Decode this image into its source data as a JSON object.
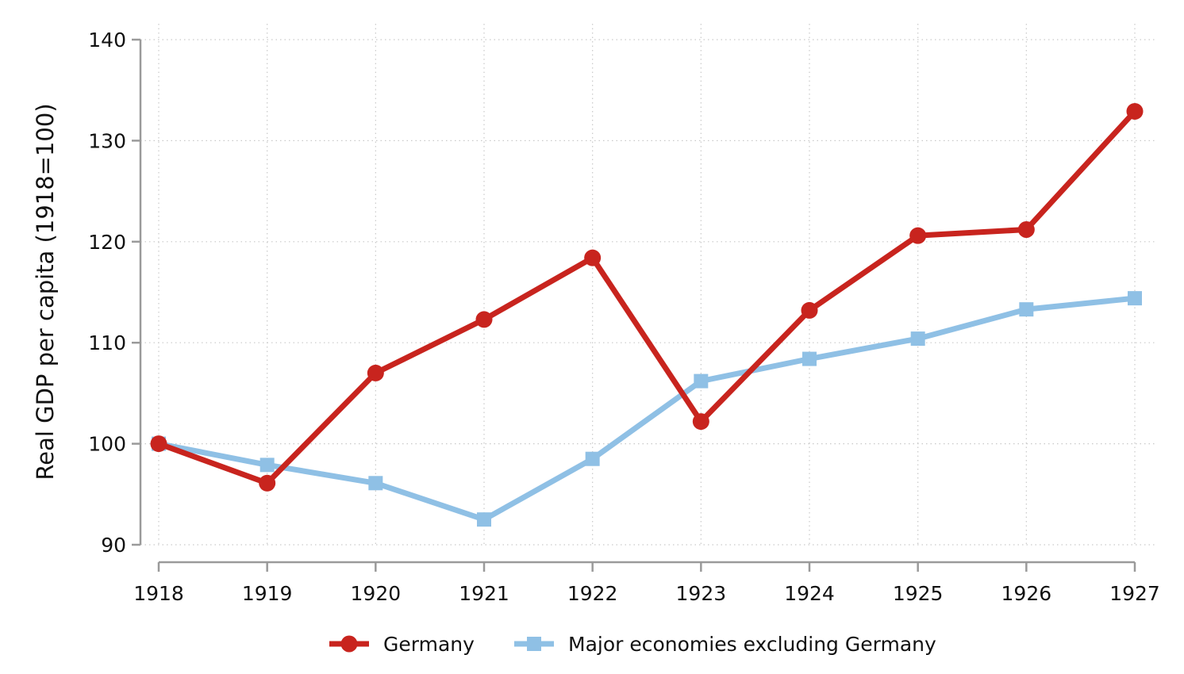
{
  "chart_data": {
    "type": "line",
    "title": "",
    "xlabel": "",
    "ylabel": "Real GDP per capita (1918=100)",
    "x": [
      1918,
      1919,
      1920,
      1921,
      1922,
      1923,
      1924,
      1925,
      1926,
      1927
    ],
    "x_tick_labels": [
      "1918",
      "1919",
      "1920",
      "1921",
      "1922",
      "1923",
      "1924",
      "1925",
      "1926",
      "1927"
    ],
    "ylim": [
      90,
      140
    ],
    "y_ticks": [
      90,
      100,
      110,
      120,
      130,
      140
    ],
    "grid": true,
    "legend_position": "bottom",
    "series": [
      {
        "name": "Germany",
        "values": [
          100,
          96.1,
          107,
          112.3,
          118.4,
          102.2,
          113.2,
          120.6,
          121.2,
          132.9
        ],
        "color": "#c8241e",
        "marker": "circle"
      },
      {
        "name": "Major economies excluding Germany",
        "values": [
          100,
          97.9,
          96.1,
          92.5,
          98.5,
          106.2,
          108.4,
          110.4,
          113.3,
          114.4
        ],
        "color": "#8fc0e5",
        "marker": "square"
      }
    ]
  }
}
